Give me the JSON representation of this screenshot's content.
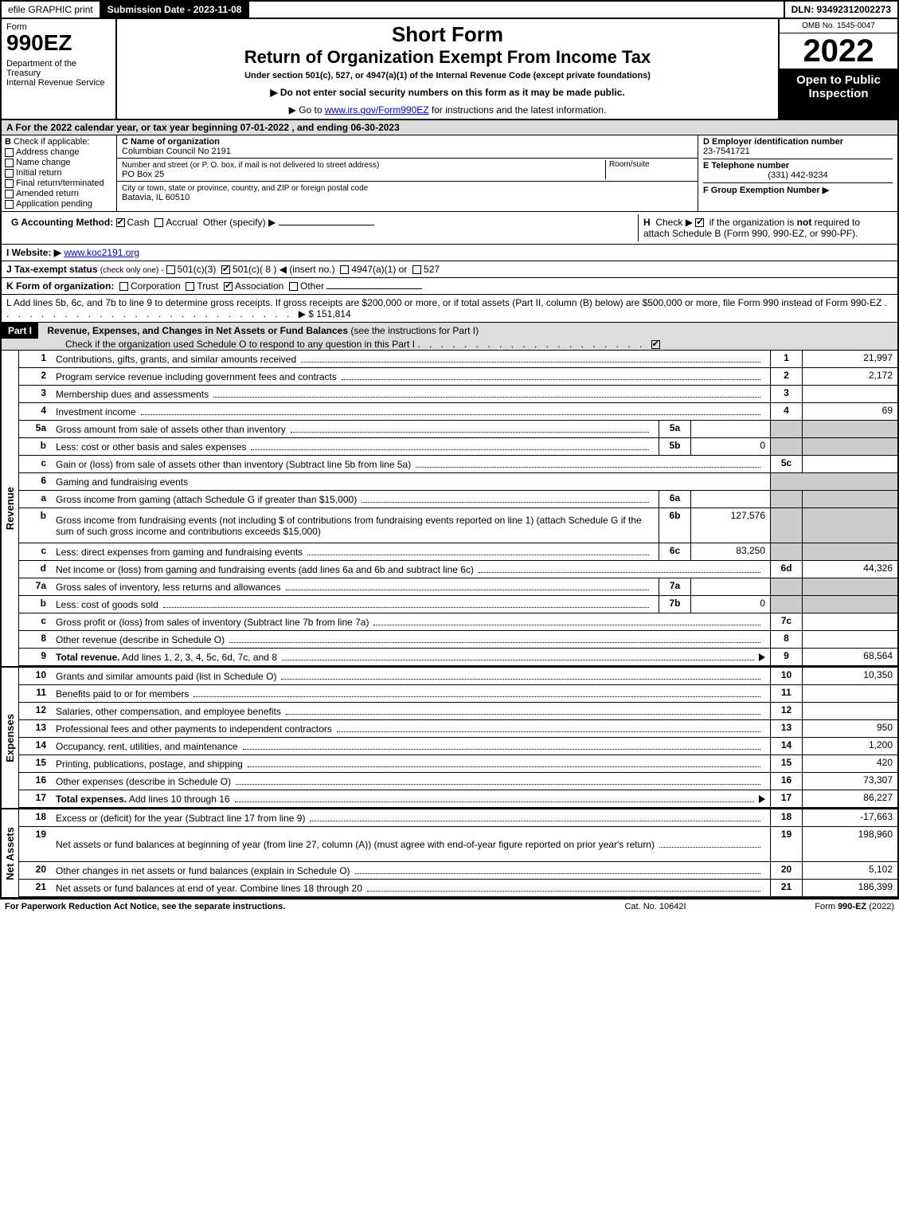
{
  "topbar": {
    "efile": "efile GRAPHIC print",
    "submission": "Submission Date - 2023-11-08",
    "dln": "DLN: 93492312002273"
  },
  "header": {
    "form_word": "Form",
    "form_no": "990EZ",
    "dept": "Department of the Treasury\nInternal Revenue Service",
    "title1": "Short Form",
    "title2": "Return of Organization Exempt From Income Tax",
    "subtitle": "Under section 501(c), 527, or 4947(a)(1) of the Internal Revenue Code (except private foundations)",
    "note1": "▶ Do not enter social security numbers on this form as it may be made public.",
    "note2_pre": "▶ Go to ",
    "note2_link": "www.irs.gov/Form990EZ",
    "note2_post": " for instructions and the latest information.",
    "omb": "OMB No. 1545-0047",
    "year": "2022",
    "open": "Open to Public Inspection"
  },
  "sectionA": "A  For the 2022 calendar year, or tax year beginning 07-01-2022 , and ending 06-30-2023",
  "B": {
    "label": "B",
    "check": "Check if applicable:",
    "opts": [
      "Address change",
      "Name change",
      "Initial return",
      "Final return/terminated",
      "Amended return",
      "Application pending"
    ]
  },
  "C": {
    "name_label": "C Name of organization",
    "name": "Columbian Council No 2191",
    "addr_label": "Number and street (or P. O. box, if mail is not delivered to street address)",
    "room_label": "Room/suite",
    "addr": "PO Box 25",
    "city_label": "City or town, state or province, country, and ZIP or foreign postal code",
    "city": "Batavia, IL  60510"
  },
  "D": {
    "label": "D Employer identification number",
    "value": "23-7541721"
  },
  "E": {
    "label": "E Telephone number",
    "value": "(331) 442-9234"
  },
  "F": {
    "label": "F Group Exemption Number  ▶"
  },
  "G": {
    "label": "G Accounting Method:",
    "cash": "Cash",
    "accrual": "Accrual",
    "other": "Other (specify) ▶"
  },
  "H": {
    "label": "H",
    "text1": "Check ▶",
    "text2": "if the organization is not required to attach Schedule B (Form 990, 990-EZ, or 990-PF).",
    "not": "not"
  },
  "I": {
    "label": "I Website: ▶",
    "value": "www.koc2191.org"
  },
  "J": {
    "label": "J Tax-exempt status",
    "note": "(check only one) -",
    "opt1": "501(c)(3)",
    "opt2": "501(c)( 8 ) ◀ (insert no.)",
    "opt3": "4947(a)(1) or",
    "opt4": "527"
  },
  "K": {
    "label": "K Form of organization:",
    "opts": [
      "Corporation",
      "Trust",
      "Association",
      "Other"
    ]
  },
  "L": {
    "text": "L Add lines 5b, 6c, and 7b to line 9 to determine gross receipts. If gross receipts are $200,000 or more, or if total assets (Part II, column (B) below) are $500,000 or more, file Form 990 instead of Form 990-EZ",
    "amount": "▶ $ 151,814"
  },
  "part1": {
    "tag": "Part I",
    "title": "Revenue, Expenses, and Changes in Net Assets or Fund Balances",
    "note": "(see the instructions for Part I)",
    "check_line": "Check if the organization used Schedule O to respond to any question in this Part I"
  },
  "vlabels": {
    "revenue": "Revenue",
    "expenses": "Expenses",
    "netassets": "Net Assets"
  },
  "revenue": [
    {
      "n": "1",
      "d": "Contributions, gifts, grants, and similar amounts received",
      "idx": "1",
      "v": "21,997"
    },
    {
      "n": "2",
      "d": "Program service revenue including government fees and contracts",
      "idx": "2",
      "v": "2,172"
    },
    {
      "n": "3",
      "d": "Membership dues and assessments",
      "idx": "3",
      "v": ""
    },
    {
      "n": "4",
      "d": "Investment income",
      "idx": "4",
      "v": "69"
    },
    {
      "n": "5a",
      "d": "Gross amount from sale of assets other than inventory",
      "sub": "5a",
      "subv": "",
      "grey": true
    },
    {
      "n": "b",
      "d": "Less: cost or other basis and sales expenses",
      "sub": "5b",
      "subv": "0",
      "grey": true
    },
    {
      "n": "c",
      "d": "Gain or (loss) from sale of assets other than inventory (Subtract line 5b from line 5a)",
      "idx": "5c",
      "v": ""
    },
    {
      "n": "6",
      "d": "Gaming and fundraising events",
      "plain": true
    },
    {
      "n": "a",
      "d": "Gross income from gaming (attach Schedule G if greater than $15,000)",
      "sub": "6a",
      "subv": "",
      "grey": true
    },
    {
      "n": "b",
      "d": "Gross income from fundraising events (not including $                    of contributions from fundraising events reported on line 1) (attach Schedule G if the sum of such gross income and contributions exceeds $15,000)",
      "sub": "6b",
      "subv": "127,576",
      "grey": true,
      "tall": true
    },
    {
      "n": "c",
      "d": "Less: direct expenses from gaming and fundraising events",
      "sub": "6c",
      "subv": "83,250",
      "grey": true
    },
    {
      "n": "d",
      "d": "Net income or (loss) from gaming and fundraising events (add lines 6a and 6b and subtract line 6c)",
      "idx": "6d",
      "v": "44,326"
    },
    {
      "n": "7a",
      "d": "Gross sales of inventory, less returns and allowances",
      "sub": "7a",
      "subv": "",
      "grey": true
    },
    {
      "n": "b",
      "d": "Less: cost of goods sold",
      "sub": "7b",
      "subv": "0",
      "grey": true
    },
    {
      "n": "c",
      "d": "Gross profit or (loss) from sales of inventory (Subtract line 7b from line 7a)",
      "idx": "7c",
      "v": ""
    },
    {
      "n": "8",
      "d": "Other revenue (describe in Schedule O)",
      "idx": "8",
      "v": ""
    },
    {
      "n": "9",
      "d": "Total revenue. Add lines 1, 2, 3, 4, 5c, 6d, 7c, and 8",
      "idx": "9",
      "v": "68,564",
      "bold": true,
      "arrow": true
    }
  ],
  "expenses": [
    {
      "n": "10",
      "d": "Grants and similar amounts paid (list in Schedule O)",
      "idx": "10",
      "v": "10,350"
    },
    {
      "n": "11",
      "d": "Benefits paid to or for members",
      "idx": "11",
      "v": ""
    },
    {
      "n": "12",
      "d": "Salaries, other compensation, and employee benefits",
      "idx": "12",
      "v": ""
    },
    {
      "n": "13",
      "d": "Professional fees and other payments to independent contractors",
      "idx": "13",
      "v": "950"
    },
    {
      "n": "14",
      "d": "Occupancy, rent, utilities, and maintenance",
      "idx": "14",
      "v": "1,200"
    },
    {
      "n": "15",
      "d": "Printing, publications, postage, and shipping",
      "idx": "15",
      "v": "420"
    },
    {
      "n": "16",
      "d": "Other expenses (describe in Schedule O)",
      "idx": "16",
      "v": "73,307"
    },
    {
      "n": "17",
      "d": "Total expenses. Add lines 10 through 16",
      "idx": "17",
      "v": "86,227",
      "bold": true,
      "arrow": true
    }
  ],
  "netassets": [
    {
      "n": "18",
      "d": "Excess or (deficit) for the year (Subtract line 17 from line 9)",
      "idx": "18",
      "v": "-17,663"
    },
    {
      "n": "19",
      "d": "Net assets or fund balances at beginning of year (from line 27, column (A)) (must agree with end-of-year figure reported on prior year's return)",
      "idx": "19",
      "v": "198,960",
      "tall": true
    },
    {
      "n": "20",
      "d": "Other changes in net assets or fund balances (explain in Schedule O)",
      "idx": "20",
      "v": "5,102"
    },
    {
      "n": "21",
      "d": "Net assets or fund balances at end of year. Combine lines 18 through 20",
      "idx": "21",
      "v": "186,399"
    }
  ],
  "footer": {
    "left": "For Paperwork Reduction Act Notice, see the separate instructions.",
    "center": "Cat. No. 10642I",
    "right_pre": "Form ",
    "right_bold": "990-EZ",
    "right_post": " (2022)"
  }
}
